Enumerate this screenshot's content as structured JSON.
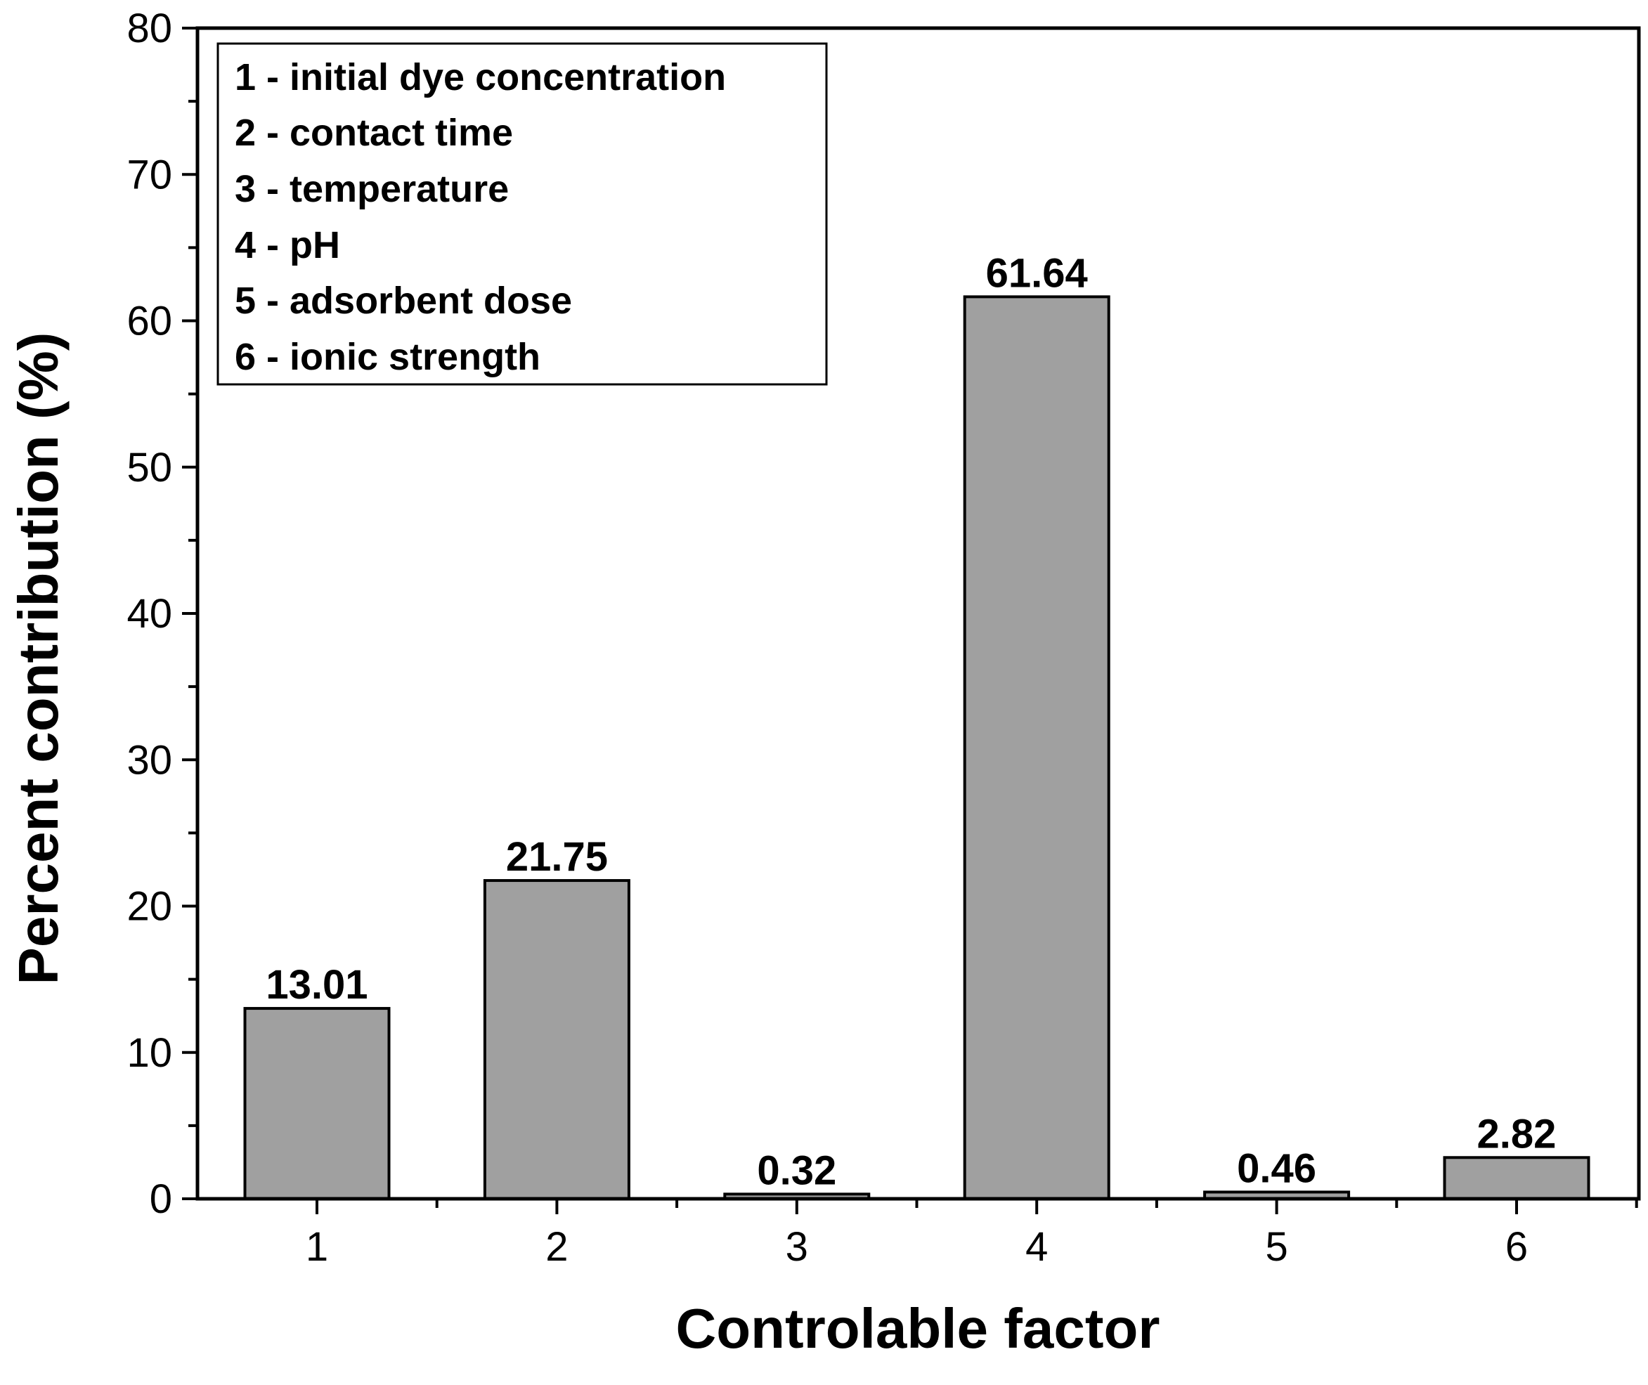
{
  "chart_data": {
    "type": "bar",
    "categories": [
      "1",
      "2",
      "3",
      "4",
      "5",
      "6"
    ],
    "values": [
      13.01,
      21.75,
      0.32,
      61.64,
      0.46,
      2.82
    ],
    "value_labels": [
      "13.01",
      "21.75",
      "0.32",
      "61.64",
      "0.46",
      "2.82"
    ],
    "xlabel": "Controlable factor",
    "ylabel": "Percent contribution (%)",
    "ylim": [
      0,
      80
    ],
    "yticks": [
      "0",
      "10",
      "20",
      "30",
      "40",
      "50",
      "60",
      "70",
      "80"
    ],
    "legend_position": "top-left",
    "legend": [
      "1 - initial dye concentration",
      "2 - contact time",
      "3 - temperature",
      "4 - pH",
      "5 - adsorbent dose",
      "6 - ionic strength"
    ],
    "bar_color": "#a0a0a0",
    "edge_color": "#000000"
  }
}
